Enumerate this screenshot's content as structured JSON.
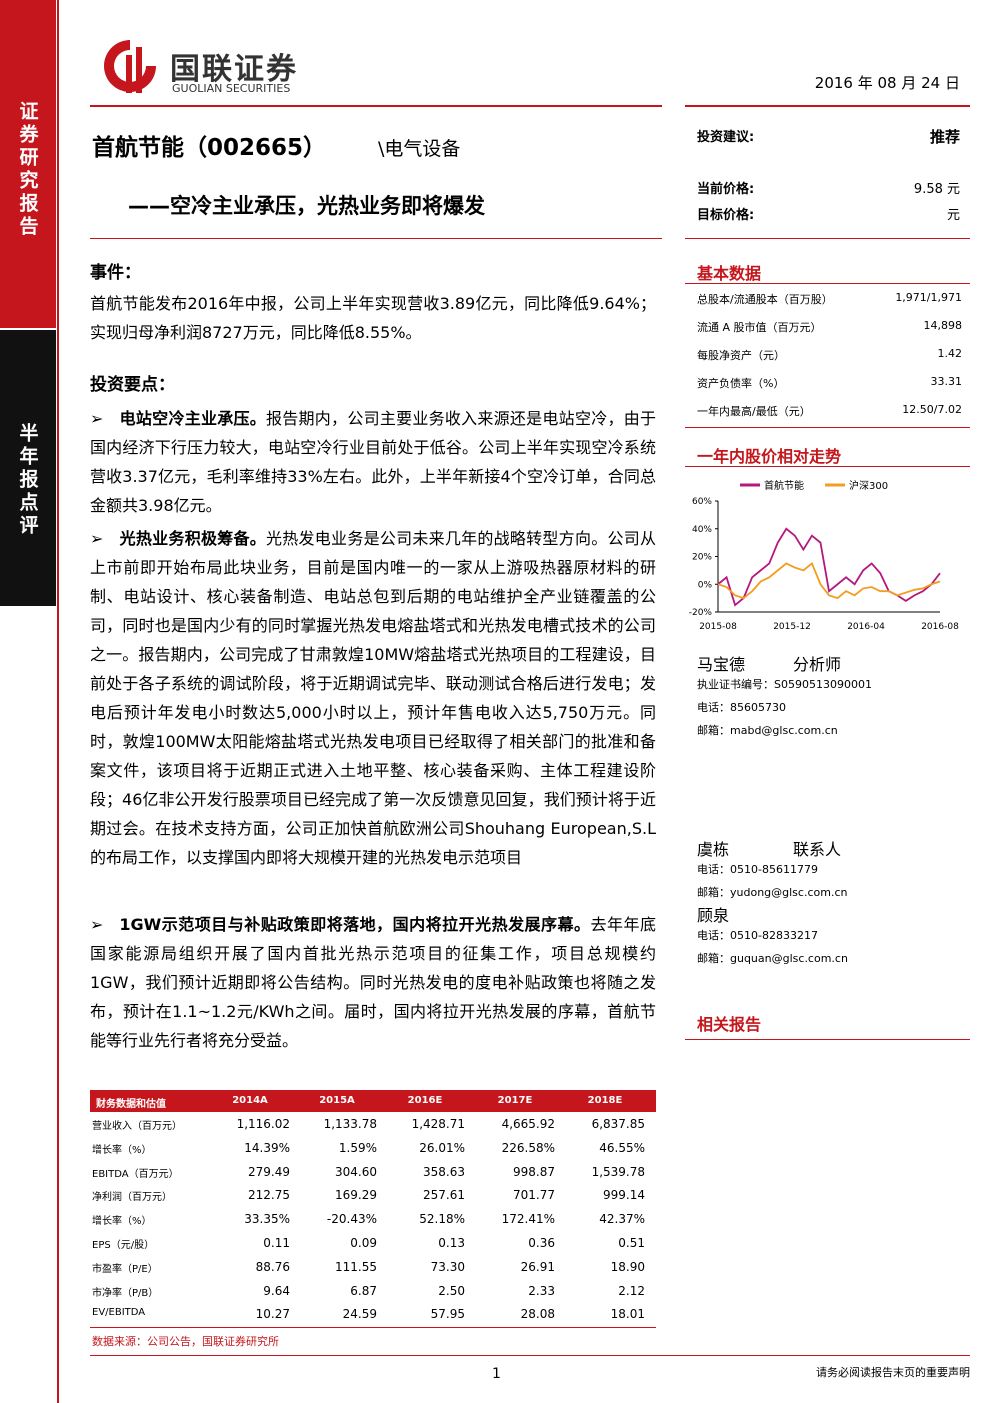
{
  "header": {
    "logo_cn": "国联证券",
    "logo_en": "GUOLIAN SECURITIES",
    "date": "2016 年 08 月 24 日"
  },
  "sidebar": {
    "top": "证券研究报告",
    "bottom": "半年报点评"
  },
  "title": {
    "company": "首航节能（002665）",
    "sector": "\\电气设备",
    "subtitle": "——空冷主业承压，光热业务即将爆发"
  },
  "rating": [
    {
      "label": "投资建议:",
      "value": "推荐"
    },
    {
      "label": "当前价格:",
      "value": "9.58 元"
    },
    {
      "label": "目标价格:",
      "value": "元"
    }
  ],
  "basic_data": {
    "title": "基本数据",
    "rows": [
      [
        "总股本/流通股本（百万股）",
        "1,971/1,971"
      ],
      [
        "流通 A 股市值（百万元）",
        "14,898"
      ],
      [
        "每股净资产（元）",
        "1.42"
      ],
      [
        "资产负债率（%）",
        "33.31"
      ],
      [
        "一年内最高/最低（元）",
        "12.50/7.02"
      ]
    ]
  },
  "stock_chart": {
    "title": "一年内股价相对走势",
    "type": "line",
    "series": [
      {
        "name": "首航节能",
        "color": "#b5177e",
        "values": [
          0,
          5,
          -15,
          -10,
          5,
          10,
          15,
          30,
          40,
          35,
          25,
          35,
          30,
          -5,
          0,
          5,
          0,
          10,
          15,
          8,
          -5,
          -8,
          -12,
          -8,
          -5,
          0,
          8
        ]
      },
      {
        "name": "沪深300",
        "color": "#f39c1f",
        "values": [
          0,
          -2,
          -8,
          -10,
          -5,
          2,
          5,
          10,
          15,
          12,
          10,
          15,
          0,
          -8,
          -10,
          -5,
          -8,
          -3,
          -2,
          -5,
          -5,
          -8,
          -6,
          -4,
          -3,
          0,
          2
        ]
      }
    ],
    "ylim": [
      -20,
      60
    ],
    "yticks": [
      {
        "value": -20,
        "label": "-20%"
      },
      {
        "value": 0,
        "label": "0%"
      },
      {
        "value": 20,
        "label": "20%"
      },
      {
        "value": 40,
        "label": "40%"
      },
      {
        "value": 60,
        "label": "60%"
      }
    ],
    "x_labels": [
      "2015-08",
      "2015-12",
      "2016-04",
      "2016-08"
    ]
  },
  "analysts": [
    {
      "name": "马宝德",
      "role": "分析师",
      "lines": [
        "执业证书编号：S0590513090001",
        "电话：85605730",
        "邮箱：mabd@glsc.com.cn"
      ]
    },
    {
      "name": "虞栋",
      "role": "联系人",
      "lines": [
        "电话：0510-85611779",
        "邮箱：yudong@glsc.com.cn"
      ]
    },
    {
      "name": "顾泉",
      "lines": [
        "电话：0510-82833217",
        "邮箱：guquan@glsc.com.cn"
      ]
    }
  ],
  "related": "相关报告",
  "body": {
    "event_heading": "事件：",
    "event": "首航节能发布2016年中报，公司上半年实现营收3.89亿元，同比降低9.64%；实现归母净利润8727万元，同比降低8.55%。",
    "points_heading": "投资要点：",
    "points": [
      {
        "lead": "电站空冷主业承压。",
        "text": "报告期内，公司主要业务收入来源还是电站空冷，由于国内经济下行压力较大，电站空冷行业目前处于低谷。公司上半年实现空冷系统营收3.37亿元，毛利率维持33%左右。此外，上半年新接4个空冷订单，合同总金额共3.98亿元。"
      },
      {
        "lead": "光热业务积极筹备。",
        "text": "光热发电业务是公司未来几年的战略转型方向。公司从上市前即开始布局此块业务，目前是国内唯一的一家从上游吸热器原材料的研制、电站设计、核心装备制造、电站总包到后期的电站维护全产业链覆盖的公司，同时也是国内少有的同时掌握光热发电熔盐塔式和光热发电槽式技术的公司之一。报告期内，公司完成了甘肃敦煌10MW熔盐塔式光热项目的工程建设，目前处于各子系统的调试阶段，将于近期调试完毕、联动测试合格后进行发电；发电后预计年发电小时数达5,000小时以上，预计年售电收入达5,750万元。同时，敦煌100MW太阳能熔盐塔式光热发电项目已经取得了相关部门的批准和备案文件，该项目将于近期正式进入土地平整、核心装备采购、主体工程建设阶段；46亿非公开发行股票项目已经完成了第一次反馈意见回复，我们预计将于近期过会。在技术支持方面，公司正加快首航欧洲公司Shouhang European,S.L的布局工作，以支撑国内即将大规模开建的光热发电示范项目"
      },
      {
        "lead": "1GW示范项目与补贴政策即将落地，国内将拉开光热发展序幕。",
        "text": "去年年底国家能源局组织开展了国内首批光热示范项目的征集工作，项目总规模约1GW，我们预计近期即将公告结构。同时光热发电的度电补贴政策也将随之发布，预计在1.1~1.2元/KWh之间。届时，国内将拉开光热发展的序幕，首航节能等行业先行者将充分受益。"
      }
    ]
  },
  "fin_table": {
    "header": [
      "财务数据和估值",
      "2014A",
      "2015A",
      "2016E",
      "2017E",
      "2018E"
    ],
    "rows": [
      [
        "营业收入（百万元）",
        "1,116.02",
        "1,133.78",
        "1,428.71",
        "4,665.92",
        "6,837.85"
      ],
      [
        "增长率（%）",
        "14.39%",
        "1.59%",
        "26.01%",
        "226.58%",
        "46.55%"
      ],
      [
        "EBITDA（百万元）",
        "279.49",
        "304.60",
        "358.63",
        "998.87",
        "1,539.78"
      ],
      [
        "净利润（百万元）",
        "212.75",
        "169.29",
        "257.61",
        "701.77",
        "999.14"
      ],
      [
        "增长率（%）",
        "33.35%",
        "-20.43%",
        "52.18%",
        "172.41%",
        "42.37%"
      ],
      [
        "EPS（元/股）",
        "0.11",
        "0.09",
        "0.13",
        "0.36",
        "0.51"
      ],
      [
        "市盈率（P/E）",
        "88.76",
        "111.55",
        "73.30",
        "26.91",
        "18.90"
      ],
      [
        "市净率（P/B）",
        "9.64",
        "6.87",
        "2.50",
        "2.33",
        "2.12"
      ],
      [
        "EV/EBITDA",
        "10.27",
        "24.59",
        "57.95",
        "28.08",
        "18.01"
      ]
    ]
  },
  "source": "数据来源：公司公告，国联证券研究所",
  "footer": {
    "page": "1",
    "notice": "请务必阅读报告末页的重要声明"
  }
}
